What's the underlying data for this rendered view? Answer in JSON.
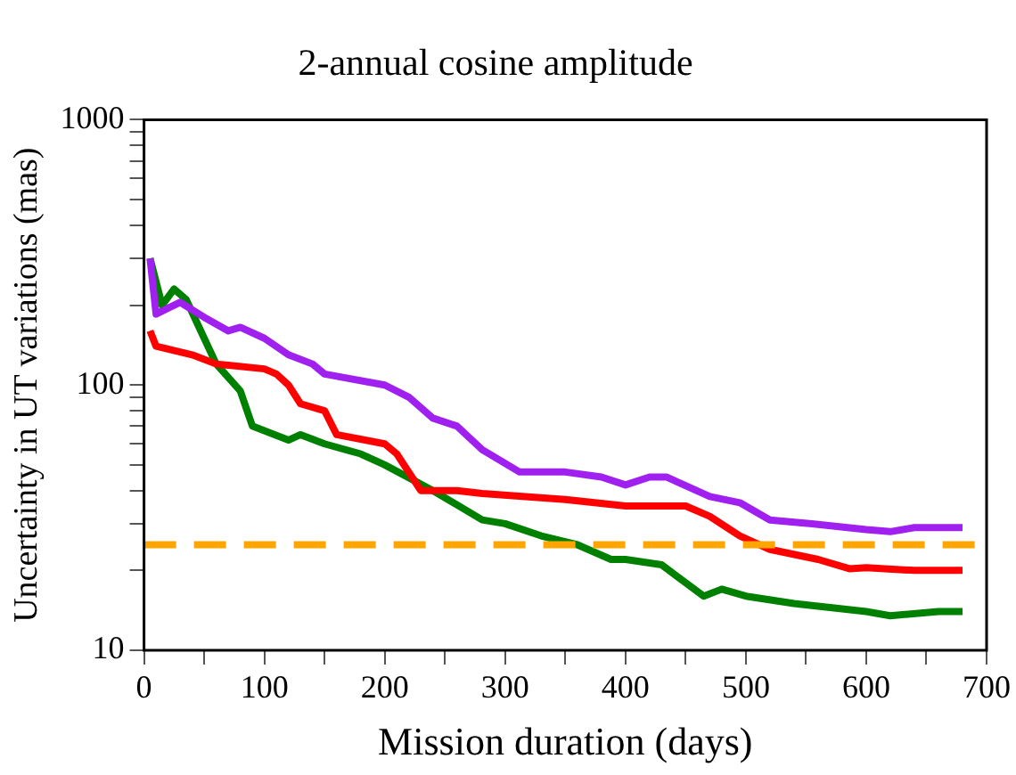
{
  "chart_data": {
    "type": "line",
    "title": "2-annual cosine amplitude",
    "xlabel": "Mission duration (days)",
    "ylabel": "Uncertainty in UT variations (mas)",
    "log": "y",
    "grid": false,
    "legend": false,
    "marker": "none",
    "line_style": "solid",
    "xlim": [
      0,
      700
    ],
    "xticks": [
      0,
      {
        "value": 50,
        "label": null
      },
      100,
      {
        "value": 150,
        "label": null
      },
      200,
      {
        "value": 250,
        "label": null
      },
      300,
      {
        "value": 350,
        "label": null
      },
      400,
      {
        "value": 450,
        "label": null
      },
      500,
      {
        "value": 550,
        "label": null
      },
      600,
      {
        "value": 650,
        "label": null
      },
      700
    ],
    "ylim": [
      10,
      1000
    ],
    "yticks": [
      10,
      {
        "value": 20,
        "label": null
      },
      {
        "value": 30,
        "label": null
      },
      {
        "value": 40,
        "label": null
      },
      {
        "value": 50,
        "label": null
      },
      {
        "value": 60,
        "label": null
      },
      {
        "value": 70,
        "label": null
      },
      {
        "value": 80,
        "label": null
      },
      {
        "value": 90,
        "label": null
      },
      100,
      {
        "value": 200,
        "label": null
      },
      {
        "value": 300,
        "label": null
      },
      {
        "value": 400,
        "label": null
      },
      {
        "value": 500,
        "label": null
      },
      {
        "value": 600,
        "label": null
      },
      {
        "value": 700,
        "label": null
      },
      {
        "value": 800,
        "label": null
      },
      {
        "value": 900,
        "label": null
      },
      1000
    ],
    "series": [
      {
        "color": "#a020f0",
        "x": [
          5,
          10,
          20,
          30,
          50,
          70,
          80,
          100,
          120,
          140,
          150,
          200,
          220,
          240,
          260,
          281,
          312,
          350,
          380,
          400,
          420,
          434,
          470,
          495,
          520,
          555,
          600,
          620,
          640,
          660,
          680
        ],
        "values": [
          300,
          185,
          195,
          205,
          180,
          160,
          165,
          150,
          130,
          120,
          110,
          100,
          90,
          75,
          70,
          57,
          47,
          47,
          45,
          42,
          45,
          45,
          38,
          36,
          31,
          30,
          28.5,
          28,
          29,
          29,
          29
        ]
      },
      {
        "color": "#ff0000",
        "x": [
          5,
          10,
          40,
          60,
          100,
          110,
          120,
          130,
          150,
          160,
          200,
          210,
          230,
          260,
          281,
          350,
          400,
          434,
          450,
          470,
          495,
          520,
          560,
          586,
          600,
          640,
          680
        ],
        "values": [
          160,
          140,
          130,
          120,
          115,
          110,
          100,
          85,
          80,
          65,
          60,
          55,
          40,
          40,
          39,
          37,
          35,
          35,
          35,
          32,
          27,
          24,
          22,
          20.3,
          20.5,
          20,
          20
        ]
      },
      {
        "color": "#008000",
        "x": [
          5,
          15,
          25,
          35,
          50,
          60,
          80,
          90,
          120,
          130,
          150,
          180,
          200,
          240,
          281,
          300,
          330,
          360,
          388,
          400,
          430,
          465,
          480,
          500,
          540,
          600,
          620,
          660,
          680
        ],
        "values": [
          300,
          200,
          230,
          210,
          150,
          120,
          95,
          70,
          62,
          65,
          60,
          55,
          50,
          40,
          31,
          30,
          27,
          25,
          22,
          22,
          21,
          16,
          17,
          16,
          15,
          14,
          13.5,
          14,
          14
        ]
      }
    ],
    "ref_lines": [
      {
        "axis": "y",
        "value": 25,
        "color": "#ffa500",
        "line_style": "dashed"
      }
    ]
  }
}
